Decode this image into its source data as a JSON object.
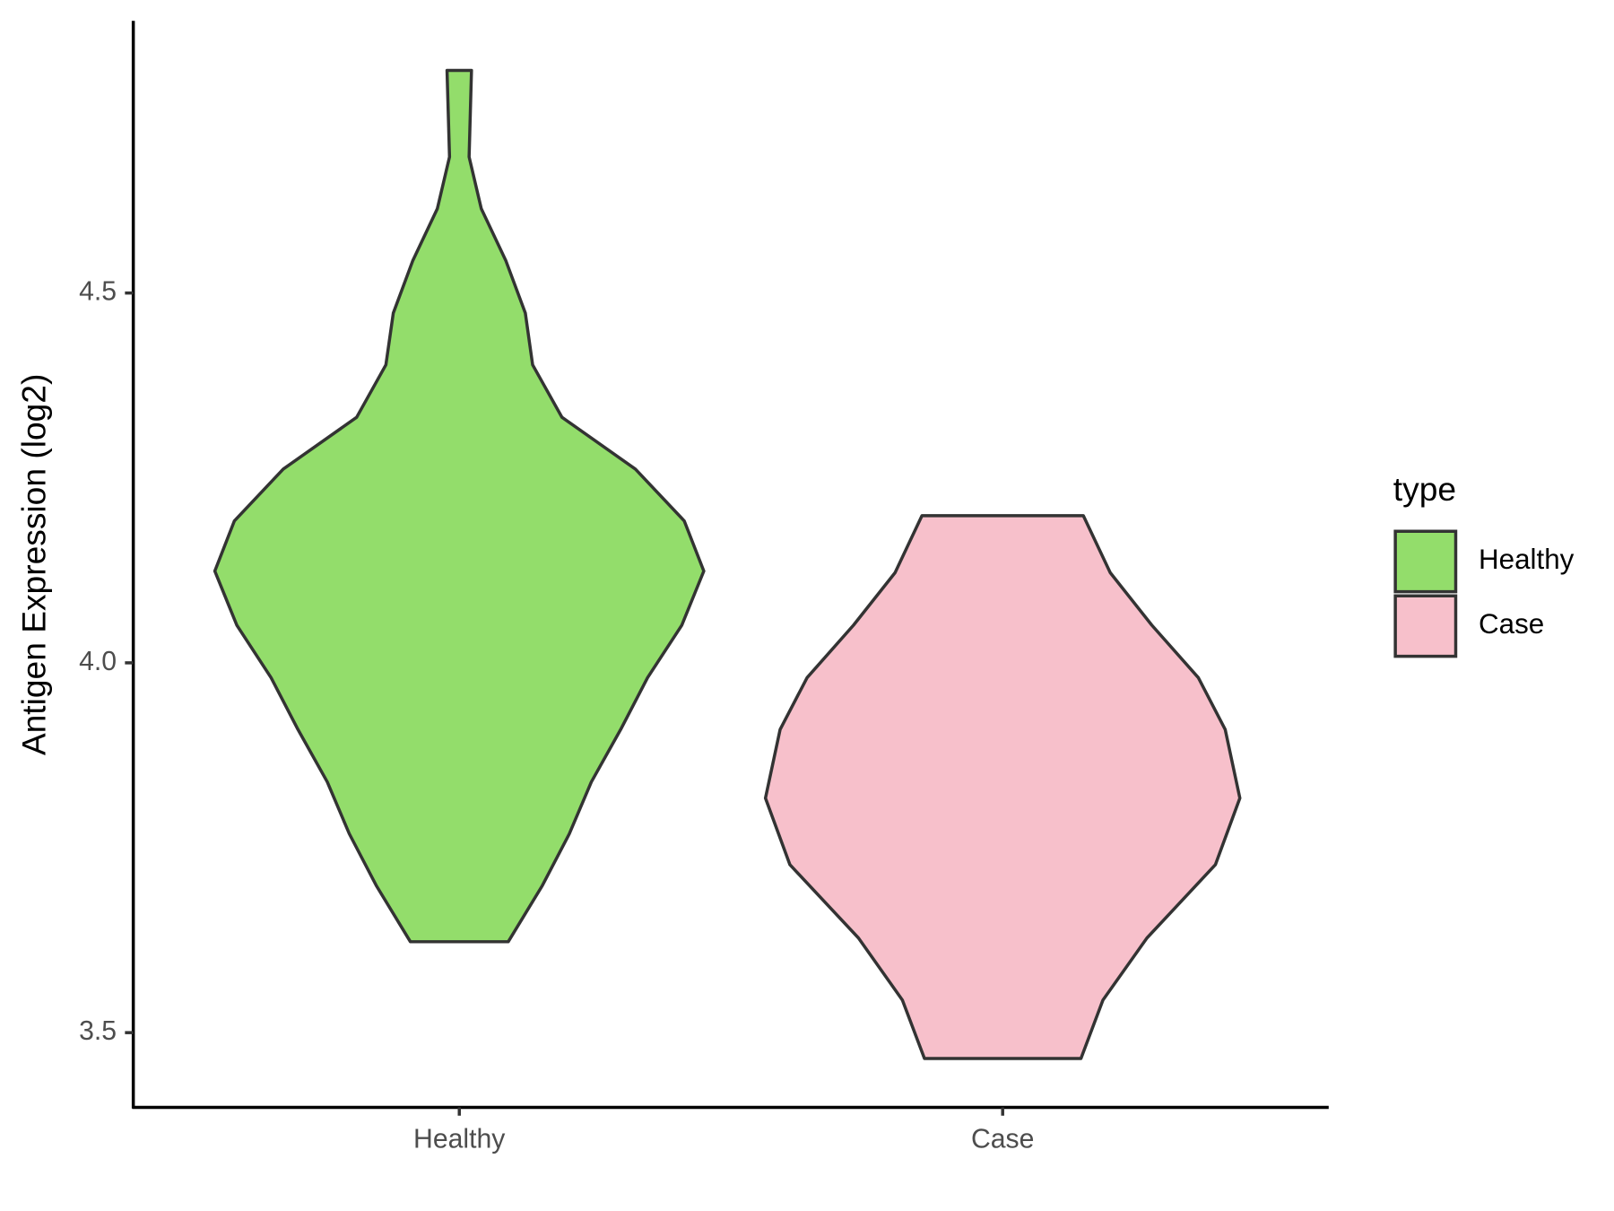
{
  "chart_data": {
    "type": "violin",
    "ylabel": "Antigen Expression (log2)",
    "categories": [
      "Healthy",
      "Case"
    ],
    "legend_title": "type",
    "legend_position": "right",
    "ylim": [
      3.399,
      4.868
    ],
    "yticks": [
      {
        "value": 3.5,
        "label": "3.5"
      },
      {
        "value": 4.0,
        "label": "4.0"
      },
      {
        "value": 4.5,
        "label": "4.5"
      }
    ],
    "series": [
      {
        "name": "Healthy",
        "color": "#93dd6b",
        "y": [
          4.801,
          4.684,
          4.614,
          4.544,
          4.473,
          4.403,
          4.332,
          4.262,
          4.192,
          4.124,
          4.051,
          3.98,
          3.91,
          3.839,
          3.769,
          3.699,
          3.623
        ],
        "density": [
          0.05,
          0.04,
          0.09,
          0.19,
          0.27,
          0.3,
          0.42,
          0.72,
          0.92,
          1.0,
          0.91,
          0.77,
          0.66,
          0.54,
          0.45,
          0.34,
          0.2
        ]
      },
      {
        "name": "Case",
        "color": "#f7c0cb",
        "y": [
          4.199,
          4.122,
          4.051,
          3.98,
          3.91,
          3.817,
          3.727,
          3.628,
          3.544,
          3.465
        ],
        "density": [
          0.33,
          0.44,
          0.61,
          0.8,
          0.91,
          0.97,
          0.87,
          0.59,
          0.41,
          0.32
        ]
      }
    ]
  }
}
